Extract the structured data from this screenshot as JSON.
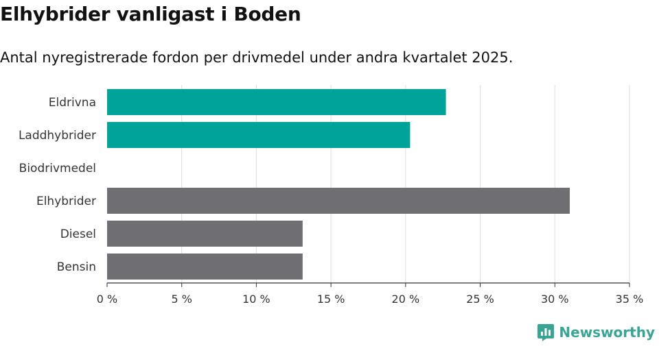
{
  "title": "Elhybrider vanligast i Boden",
  "subtitle": "Antal nyregistrerade fordon per drivmedel under andra kvartalet 2025.",
  "logo": {
    "text": "Newsworthy",
    "icon": "bar-chart-icon"
  },
  "colors": {
    "highlight": "#00a39a",
    "neutral": "#6e6e73",
    "grid": "#dddddd",
    "axis": "#333333",
    "logo": "#3aa394"
  },
  "chart_data": {
    "type": "bar",
    "orientation": "horizontal",
    "categories": [
      "Eldrivna",
      "Laddhybrider",
      "Biodrivmedel",
      "Elhybrider",
      "Diesel",
      "Bensin"
    ],
    "values": [
      22.7,
      20.3,
      0,
      31.0,
      13.1,
      13.1
    ],
    "highlighted": [
      true,
      true,
      false,
      false,
      false,
      false
    ],
    "xlim": [
      0,
      35
    ],
    "xticks": [
      0,
      5,
      10,
      15,
      20,
      25,
      30,
      35
    ],
    "tick_labels": [
      "0 %",
      "5 %",
      "10 %",
      "15 %",
      "20 %",
      "25 %",
      "30 %",
      "35 %"
    ],
    "grid": true,
    "legend": "none"
  }
}
